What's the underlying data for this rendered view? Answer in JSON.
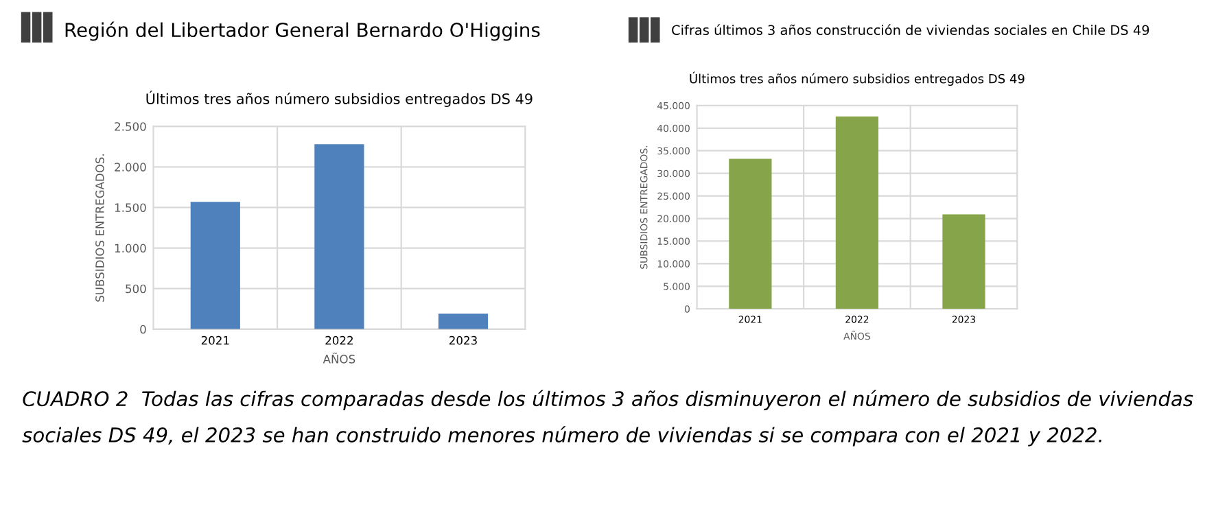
{
  "chart_data": [
    {
      "type": "bar",
      "title": "Región del Libertador General Bernardo O'Higgins",
      "subtitle": "Últimos tres años número subsidios entregados DS 49",
      "xlabel": "AÑOS",
      "ylabel": "SUBSIDIOS ENTREGADOS.",
      "categories": [
        "2021",
        "2022",
        "2023"
      ],
      "values": [
        1570,
        2280,
        190
      ],
      "color": "#4f81bd",
      "ylim": [
        0,
        2500
      ],
      "yticks": [
        {
          "value": 0,
          "label": "0"
        },
        {
          "value": 500,
          "label": "500"
        },
        {
          "value": 1000,
          "label": "1.000"
        },
        {
          "value": 1500,
          "label": "1.500"
        },
        {
          "value": 2000,
          "label": "2.000"
        },
        {
          "value": 2500,
          "label": "2.500"
        }
      ],
      "grid": true,
      "annotations": [
        "CUADRO 2  Todas las cifras comparadas desde los últimos 3 años disminuyeron el número de subsidios de viviendas sociales DS 49, el 2023 se han construido menores número de viviendas si se compara con el 2021 y 2022."
      ]
    },
    {
      "type": "bar",
      "title": "Cifras últimos 3 años construcción de viviendas sociales en Chile DS 49",
      "subtitle": "Últimos tres años número subsidios entregados DS 49",
      "xlabel": "AÑOS",
      "ylabel": "SUBSIDIOS ENTREGADOS.",
      "categories": [
        "2021",
        "2022",
        "2023"
      ],
      "values": [
        33200,
        42600,
        20900
      ],
      "color": "#86a44a",
      "ylim": [
        0,
        45000
      ],
      "yticks": [
        {
          "value": 0,
          "label": "0"
        },
        {
          "value": 5000,
          "label": "5.000"
        },
        {
          "value": 10000,
          "label": "10.000"
        },
        {
          "value": 15000,
          "label": "15.000"
        },
        {
          "value": 20000,
          "label": "20.000"
        },
        {
          "value": 25000,
          "label": "25.000"
        },
        {
          "value": 30000,
          "label": "30.000"
        },
        {
          "value": 35000,
          "label": "35.000"
        },
        {
          "value": 40000,
          "label": "40.000"
        },
        {
          "value": 45000,
          "label": "45.000"
        }
      ],
      "grid": true
    }
  ]
}
